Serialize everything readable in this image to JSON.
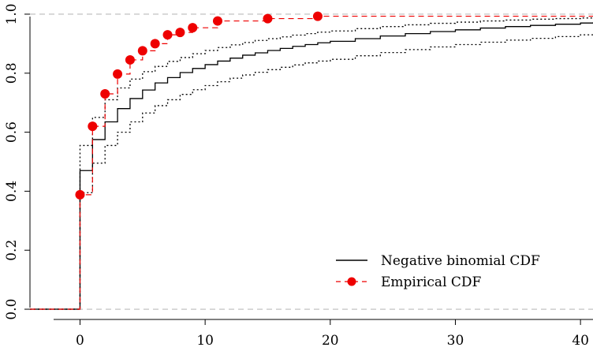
{
  "chart_data": {
    "type": "line",
    "x_ticks": [
      0,
      10,
      20,
      30,
      40
    ],
    "y_ticks": [
      "0.0",
      "0.2",
      "0.4",
      "0.6",
      "0.8",
      "1.0"
    ],
    "xlim": [
      -4,
      41
    ],
    "ylim": [
      -0.04,
      1.04
    ],
    "reference_lines_y": [
      0,
      1
    ],
    "legend": {
      "position": "bottom-right",
      "entries": [
        "Negative binomial CDF",
        "Empirical CDF"
      ]
    },
    "colors": {
      "model": "#000000",
      "empirical": "#ee0000",
      "reference": "#bbbbbb"
    },
    "series": [
      {
        "name": "Negative binomial CDF",
        "style": "solid",
        "x": [
          0,
          1,
          2,
          3,
          4,
          5,
          6,
          7,
          8,
          9,
          10,
          11,
          12,
          13,
          14,
          15,
          16,
          17,
          18,
          19,
          20,
          22,
          24,
          26,
          28,
          30,
          32,
          34,
          36,
          38,
          40,
          41
        ],
        "y": [
          0.47,
          0.575,
          0.635,
          0.68,
          0.714,
          0.743,
          0.767,
          0.785,
          0.802,
          0.816,
          0.829,
          0.841,
          0.851,
          0.861,
          0.869,
          0.877,
          0.884,
          0.891,
          0.897,
          0.903,
          0.908,
          0.917,
          0.926,
          0.934,
          0.941,
          0.947,
          0.953,
          0.958,
          0.962,
          0.966,
          0.97,
          0.972
        ]
      },
      {
        "name": "",
        "style": "dotted",
        "x": [
          0,
          1,
          2,
          3,
          4,
          5,
          6,
          7,
          8,
          9,
          10,
          11,
          12,
          13,
          14,
          15,
          16,
          17,
          18,
          19,
          20,
          22,
          24,
          26,
          28,
          30,
          32,
          34,
          36,
          38,
          40,
          41
        ],
        "y": [
          0.555,
          0.65,
          0.71,
          0.75,
          0.78,
          0.805,
          0.823,
          0.84,
          0.853,
          0.866,
          0.877,
          0.887,
          0.896,
          0.904,
          0.911,
          0.917,
          0.923,
          0.929,
          0.934,
          0.939,
          0.943,
          0.951,
          0.958,
          0.964,
          0.969,
          0.973,
          0.977,
          0.98,
          0.983,
          0.985,
          0.987,
          0.988
        ]
      },
      {
        "name": "",
        "style": "dotted",
        "x": [
          0,
          1,
          2,
          3,
          4,
          5,
          6,
          7,
          8,
          9,
          10,
          11,
          12,
          13,
          14,
          15,
          16,
          17,
          18,
          19,
          20,
          22,
          24,
          26,
          28,
          30,
          32,
          34,
          36,
          38,
          40,
          41
        ],
        "y": [
          0.395,
          0.495,
          0.555,
          0.6,
          0.635,
          0.665,
          0.69,
          0.71,
          0.728,
          0.744,
          0.758,
          0.771,
          0.783,
          0.794,
          0.803,
          0.812,
          0.82,
          0.828,
          0.835,
          0.841,
          0.847,
          0.859,
          0.87,
          0.88,
          0.889,
          0.897,
          0.905,
          0.912,
          0.918,
          0.924,
          0.93,
          0.933
        ]
      },
      {
        "name": "Empirical CDF",
        "style": "dashed-points",
        "x": [
          0,
          1,
          2,
          3,
          4,
          5,
          6,
          7,
          8,
          9,
          11,
          15,
          19
        ],
        "y": [
          0.388,
          0.62,
          0.73,
          0.797,
          0.845,
          0.876,
          0.9,
          0.93,
          0.938,
          0.954,
          0.977,
          0.985,
          0.993
        ]
      }
    ]
  }
}
